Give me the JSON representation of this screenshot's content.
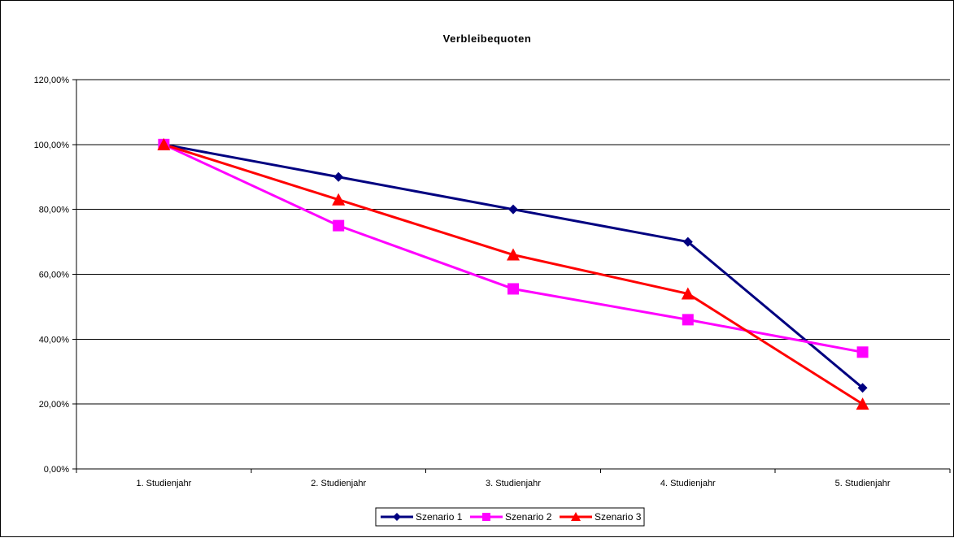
{
  "chart_data": {
    "type": "line",
    "title": "Verbleibequoten",
    "categories": [
      "1. Studienjahr",
      "2. Studienjahr",
      "3. Studienjahr",
      "4. Studienjahr",
      "5. Studienjahr"
    ],
    "ylim": [
      0,
      1.2
    ],
    "yticks": [
      0,
      0.2,
      0.4,
      0.6,
      0.8,
      1.0,
      1.2
    ],
    "ytick_labels": [
      "0,00%",
      "20,00%",
      "40,00%",
      "60,00%",
      "80,00%",
      "100,00%",
      "120,00%"
    ],
    "grid": true,
    "legend_position": "bottom",
    "series": [
      {
        "name": "Szenario 1",
        "values": [
          1.0,
          0.9,
          0.8,
          0.7,
          0.25
        ],
        "color": "#000080",
        "marker": "diamond"
      },
      {
        "name": "Szenario 2",
        "values": [
          1.0,
          0.75,
          0.555,
          0.46,
          0.36
        ],
        "color": "#FF00FF",
        "marker": "square"
      },
      {
        "name": "Szenario 3",
        "values": [
          1.0,
          0.83,
          0.66,
          0.54,
          0.2
        ],
        "color": "#FF0000",
        "marker": "triangle"
      }
    ]
  }
}
